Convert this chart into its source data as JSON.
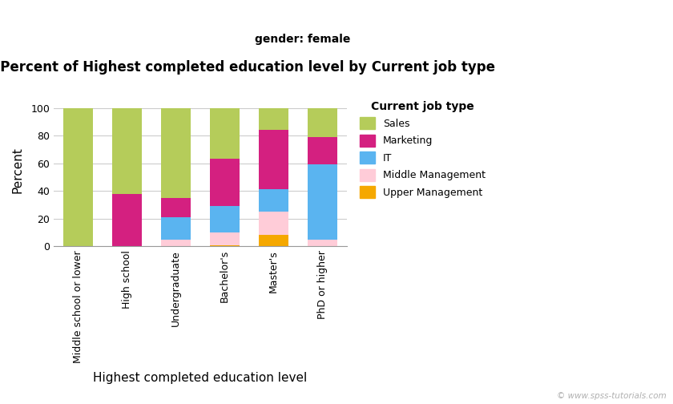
{
  "title": "Stacked Bar Percent of Highest completed education level by Current job type",
  "subtitle": "gender: female",
  "xlabel": "Highest completed education level",
  "ylabel": "Percent",
  "legend_title": "Current job type",
  "categories": [
    "Middle school or lower",
    "High school",
    "Undergraduate",
    "Bachelor's",
    "Master's",
    "PhD or higher"
  ],
  "series": {
    "Upper Management": [
      0,
      0,
      0,
      1,
      8,
      0
    ],
    "Middle Management": [
      0,
      0,
      5,
      9,
      17,
      5
    ],
    "IT": [
      0,
      0,
      16,
      19,
      16,
      54
    ],
    "Marketing": [
      0,
      38,
      14,
      34,
      43,
      20
    ],
    "Sales": [
      100,
      62,
      65,
      37,
      16,
      21
    ]
  },
  "colors": {
    "Sales": "#b5cc5a",
    "Marketing": "#d42080",
    "IT": "#5ab4f0",
    "Middle Management": "#ffccd8",
    "Upper Management": "#f5a800"
  },
  "legend_order": [
    "Sales",
    "Marketing",
    "IT",
    "Middle Management",
    "Upper Management"
  ],
  "ylim": [
    0,
    110
  ],
  "yticks": [
    0,
    20,
    40,
    60,
    80,
    100
  ],
  "background_color": "#ffffff",
  "grid_color": "#cccccc",
  "watermark": "© www.spss-tutorials.com",
  "title_fontsize": 12,
  "subtitle_fontsize": 10,
  "axis_label_fontsize": 11,
  "tick_fontsize": 9,
  "legend_title_fontsize": 10,
  "legend_fontsize": 9
}
